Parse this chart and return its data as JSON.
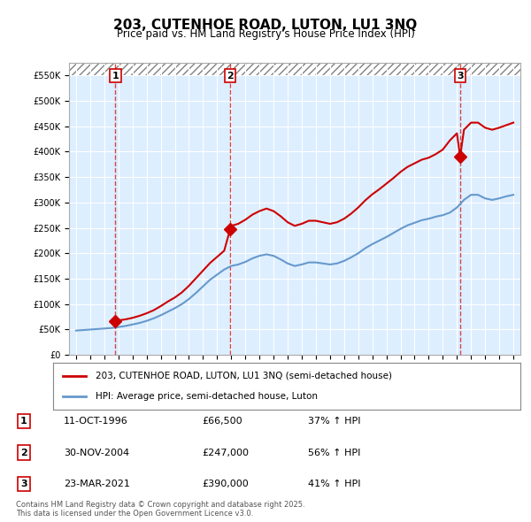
{
  "title": "203, CUTENHOE ROAD, LUTON, LU1 3NQ",
  "subtitle": "Price paid vs. HM Land Registry's House Price Index (HPI)",
  "legend_line1": "203, CUTENHOE ROAD, LUTON, LU1 3NQ (semi-detached house)",
  "legend_line2": "HPI: Average price, semi-detached house, Luton",
  "footer": "Contains HM Land Registry data © Crown copyright and database right 2025.\nThis data is licensed under the Open Government Licence v3.0.",
  "table": [
    {
      "num": "1",
      "date": "11-OCT-1996",
      "price": "£66,500",
      "change": "37% ↑ HPI"
    },
    {
      "num": "2",
      "date": "30-NOV-2004",
      "price": "£247,000",
      "change": "56% ↑ HPI"
    },
    {
      "num": "3",
      "date": "23-MAR-2021",
      "price": "£390,000",
      "change": "41% ↑ HPI"
    }
  ],
  "sale_dates": [
    1996.79,
    2004.92,
    2021.23
  ],
  "sale_prices": [
    66500,
    247000,
    390000
  ],
  "red_line_color": "#cc0000",
  "blue_line_color": "#6699cc",
  "ylim": [
    0,
    575000
  ],
  "yticks": [
    0,
    50000,
    100000,
    150000,
    200000,
    250000,
    300000,
    350000,
    400000,
    450000,
    500000,
    550000
  ],
  "xlim_start": 1993.5,
  "xlim_end": 2025.5,
  "background_color": "#ffffff",
  "plot_bg_color": "#ddeeff",
  "grid_color": "#ffffff",
  "hpi_x": [
    1994,
    1994.5,
    1995,
    1995.5,
    1996,
    1996.5,
    1997,
    1997.5,
    1998,
    1998.5,
    1999,
    1999.5,
    2000,
    2000.5,
    2001,
    2001.5,
    2002,
    2002.5,
    2003,
    2003.5,
    2004,
    2004.5,
    2005,
    2005.5,
    2006,
    2006.5,
    2007,
    2007.5,
    2008,
    2008.5,
    2009,
    2009.5,
    2010,
    2010.5,
    2011,
    2011.5,
    2012,
    2012.5,
    2013,
    2013.5,
    2014,
    2014.5,
    2015,
    2015.5,
    2016,
    2016.5,
    2017,
    2017.5,
    2018,
    2018.5,
    2019,
    2019.5,
    2020,
    2020.5,
    2021,
    2021.5,
    2022,
    2022.5,
    2023,
    2023.5,
    2024,
    2024.5,
    2025
  ],
  "hpi_y": [
    48000,
    49000,
    50000,
    51000,
    52000,
    53000,
    55000,
    57000,
    60000,
    63000,
    67000,
    72000,
    78000,
    85000,
    92000,
    100000,
    110000,
    122000,
    135000,
    148000,
    158000,
    168000,
    175000,
    178000,
    183000,
    190000,
    195000,
    198000,
    195000,
    188000,
    180000,
    175000,
    178000,
    182000,
    182000,
    180000,
    178000,
    180000,
    185000,
    192000,
    200000,
    210000,
    218000,
    225000,
    232000,
    240000,
    248000,
    255000,
    260000,
    265000,
    268000,
    272000,
    275000,
    280000,
    290000,
    305000,
    315000,
    315000,
    308000,
    305000,
    308000,
    312000,
    315000
  ],
  "price_line_x": [
    1994,
    1994.5,
    1995,
    1995.5,
    1996,
    1996.5,
    1996.79,
    1997,
    1997.5,
    1998,
    1998.5,
    1999,
    1999.5,
    2000,
    2000.5,
    2001,
    2001.5,
    2002,
    2002.5,
    2003,
    2003.5,
    2004,
    2004.5,
    2004.92,
    2005,
    2005.5,
    2006,
    2006.5,
    2007,
    2007.5,
    2008,
    2008.5,
    2009,
    2009.5,
    2010,
    2010.5,
    2011,
    2011.5,
    2012,
    2012.5,
    2013,
    2013.5,
    2014,
    2014.5,
    2015,
    2015.5,
    2016,
    2016.5,
    2017,
    2017.5,
    2018,
    2018.5,
    2019,
    2019.5,
    2020,
    2020.5,
    2021,
    2021.23,
    2021.5,
    2022,
    2022.5,
    2023,
    2023.5,
    2024,
    2024.5,
    2025
  ],
  "price_line_y": [
    null,
    null,
    null,
    null,
    null,
    null,
    66500,
    68000,
    70000,
    73000,
    77000,
    82000,
    88000,
    96000,
    105000,
    113000,
    123000,
    136000,
    151000,
    166000,
    181000,
    193000,
    205000,
    247000,
    254000,
    258000,
    266000,
    276000,
    283000,
    288000,
    283000,
    273000,
    261000,
    254000,
    258000,
    264000,
    264000,
    261000,
    258000,
    261000,
    268000,
    278000,
    290000,
    304000,
    316000,
    326000,
    337000,
    348000,
    360000,
    370000,
    377000,
    384000,
    388000,
    395000,
    404000,
    422000,
    436000,
    390000,
    443000,
    457000,
    457000,
    447000,
    443000,
    447000,
    452000,
    457000
  ]
}
